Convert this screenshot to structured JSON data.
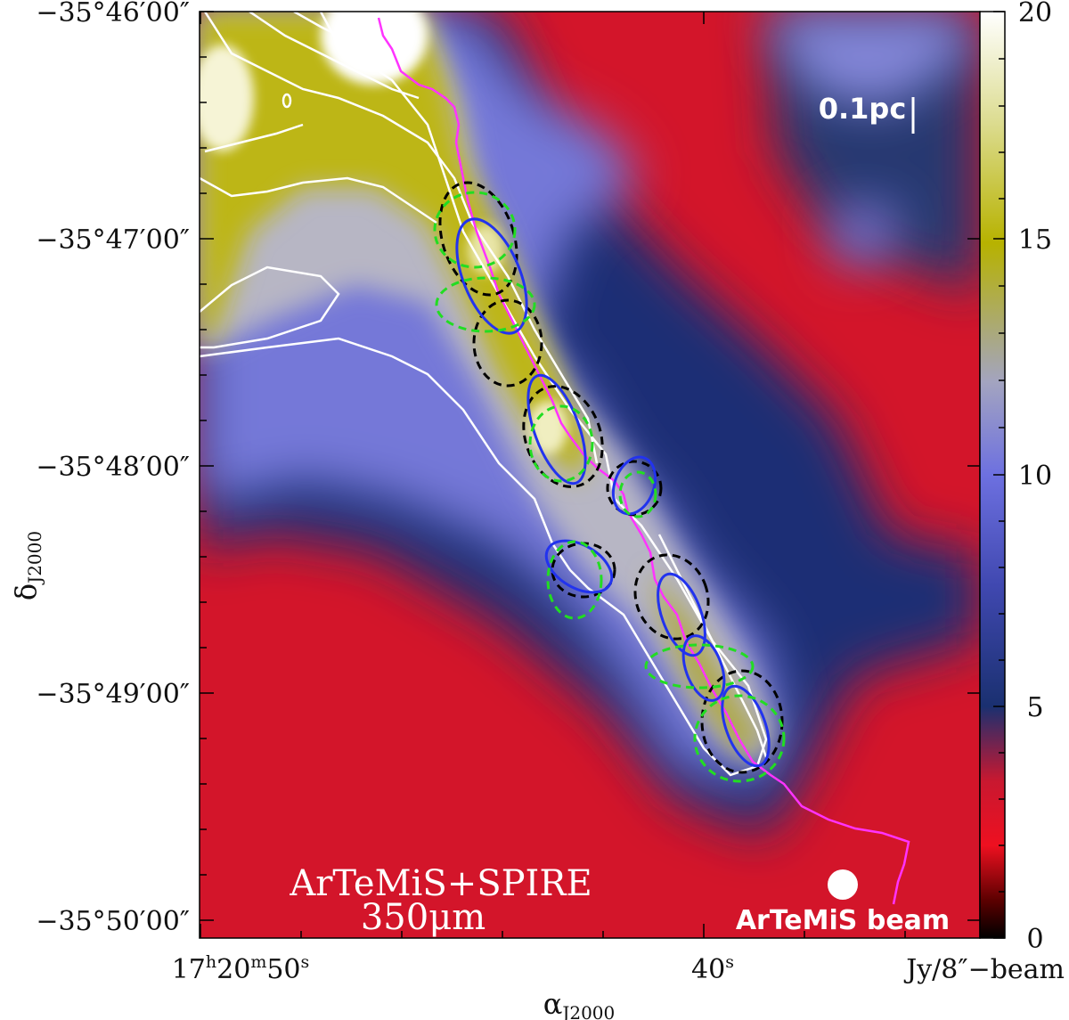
{
  "map": {
    "ra_ticks": [
      {
        "h": "17",
        "m": "20",
        "s": "50"
      },
      {
        "s": "40"
      }
    ],
    "dec_ticks": [
      "−35°46′00″",
      "−35°47′00″",
      "−35°48′00″",
      "−35°49′00″",
      "−35°50′00″"
    ],
    "xlabel": {
      "base": "α",
      "sub": "J2000"
    },
    "ylabel": {
      "base": "δ",
      "sub": "J2000"
    },
    "scale_bar": "0.1pc",
    "title_line1": "ArTeMiS+SPIRE",
    "title_line2": "350μm",
    "beam_label": "ArTeMiS beam"
  },
  "colorbar": {
    "ticks": [
      "20",
      "15",
      "10",
      "5",
      "0"
    ],
    "unit": "Jy/8″−beam",
    "colors": {
      "max": "#ffffff",
      "high": "#b7b200",
      "mid": "#6d70e0",
      "low": "#1a3070",
      "lowest": "#ee1020",
      "zero": "#000000"
    }
  },
  "legend_colors": {
    "filament_crest": "#ff33ff",
    "ellipse_black": "#000000",
    "ellipse_blue": "#2233ee",
    "ellipse_green": "#22dd22",
    "contour": "#ffffff"
  }
}
